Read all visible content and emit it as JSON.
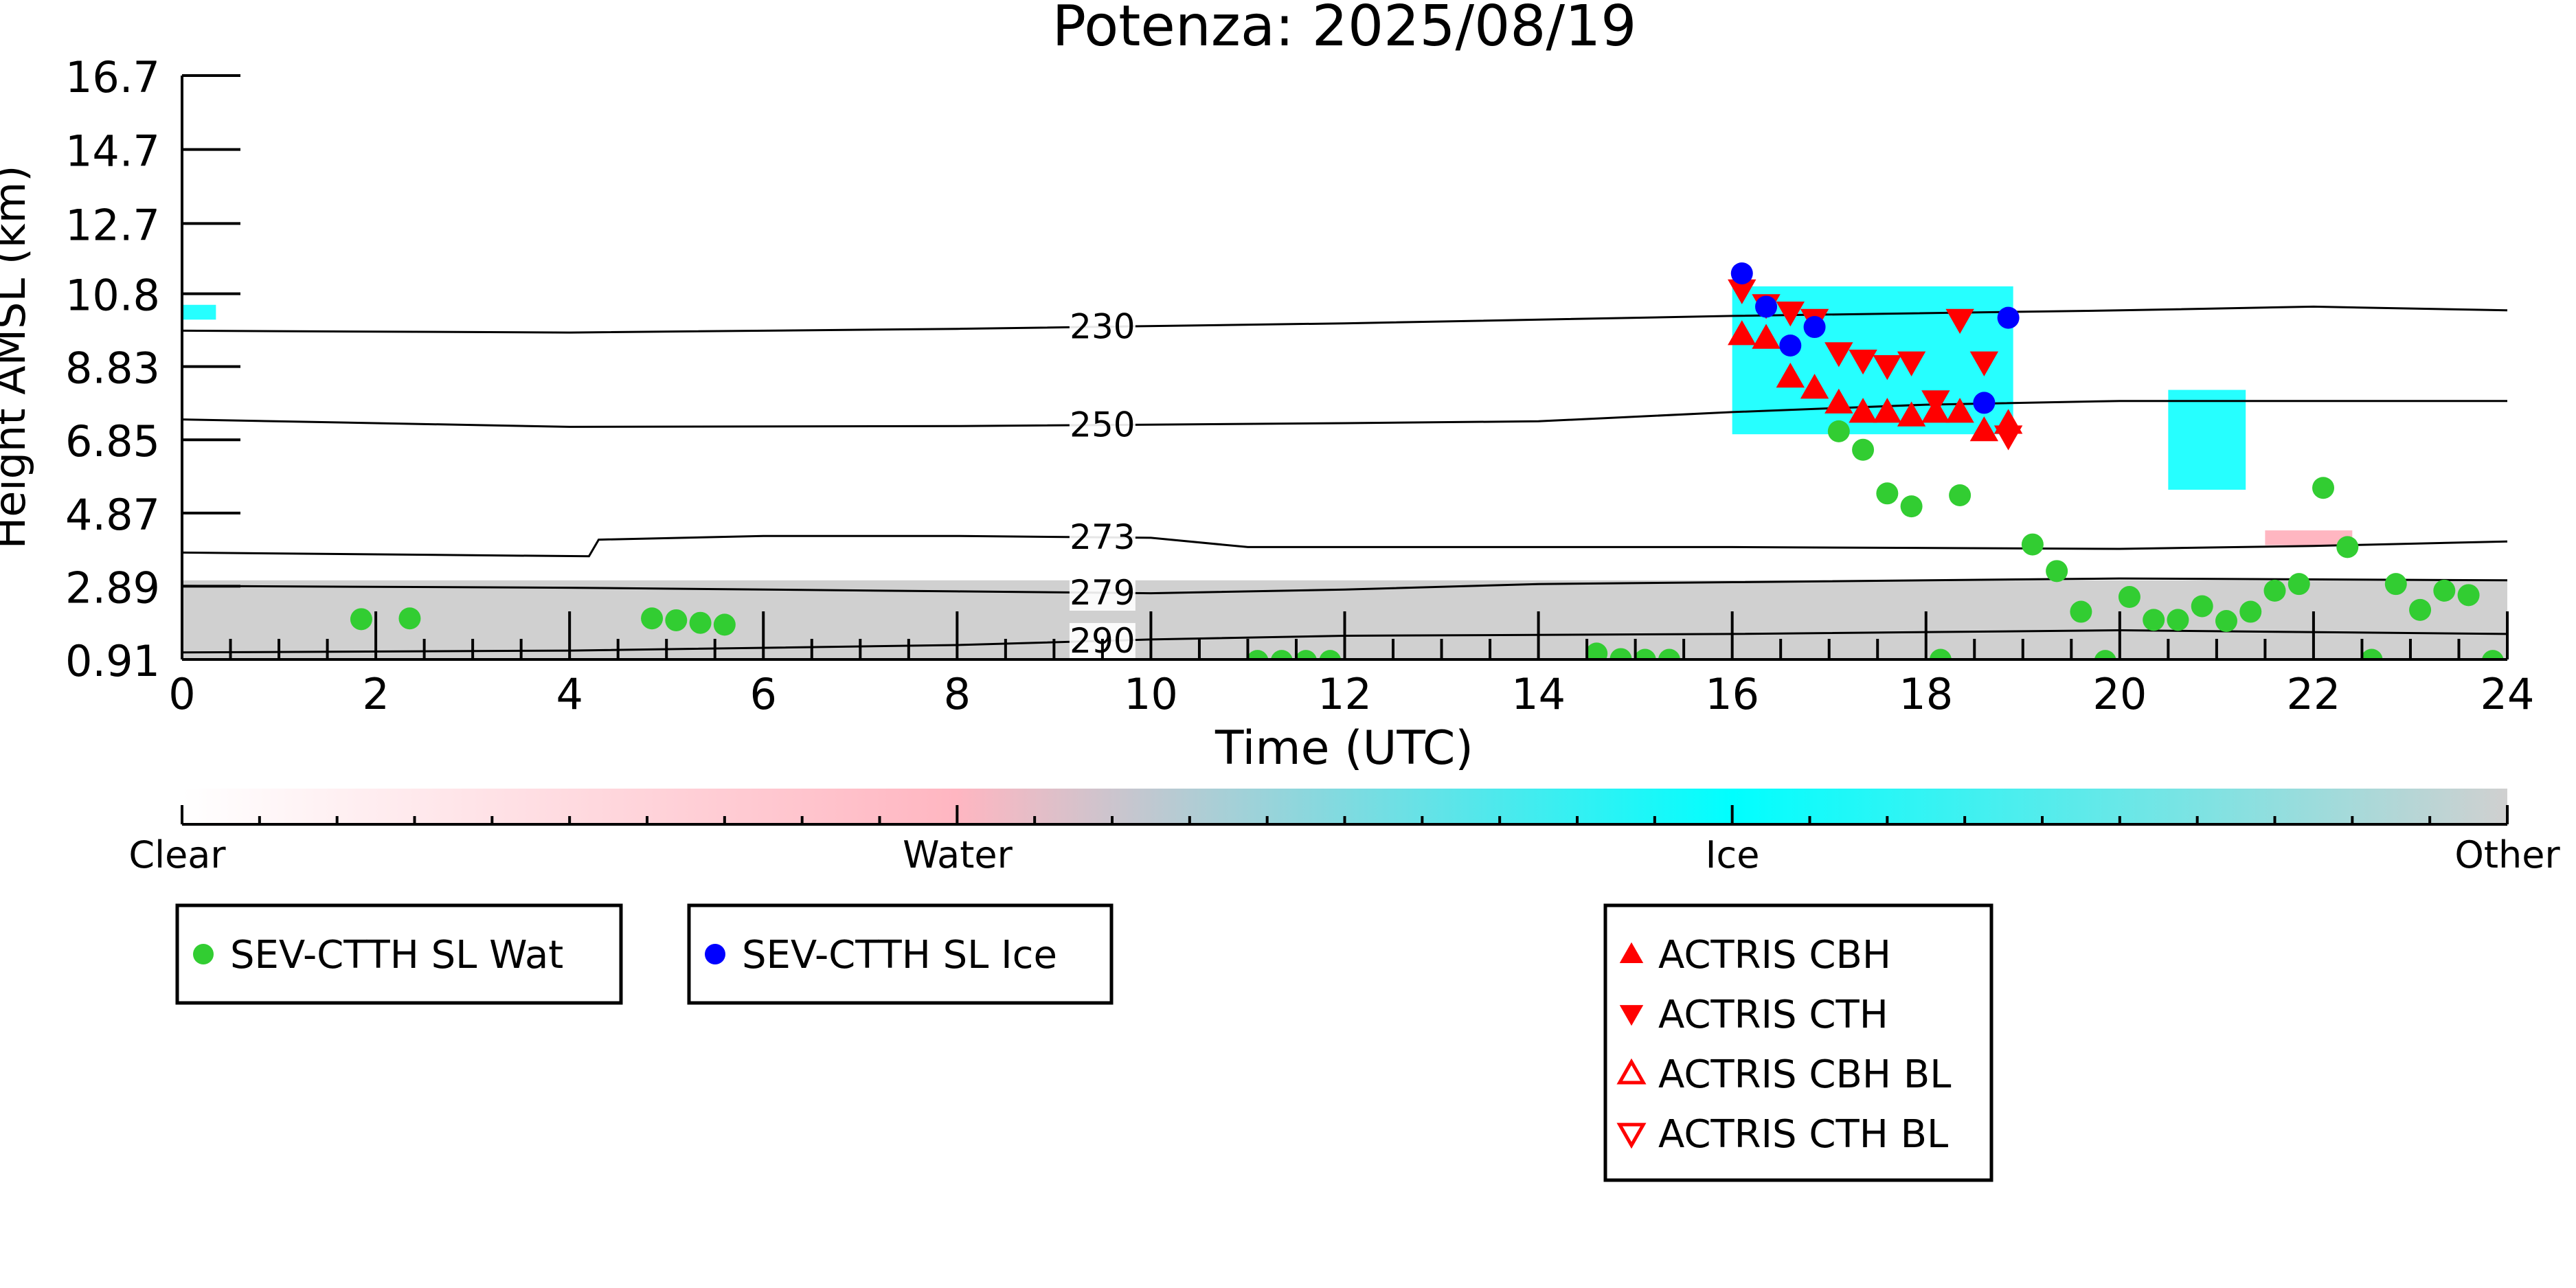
{
  "colors": {
    "clear": "#ffffff",
    "water": "#ffb6c1",
    "ice": "#00ffff",
    "other": "#d0d0d0",
    "wat_marker": "#32cd32",
    "ice_marker": "#0000ff",
    "actris": "#ff0000"
  },
  "chart_data": {
    "type": "scatter",
    "title": "Potenza: 2025/08/19",
    "xlabel": "Time (UTC)",
    "ylabel": "Height AMSL (km)",
    "xlim": [
      0,
      24
    ],
    "ylim": [
      0.91,
      16.7
    ],
    "x_ticks": [
      0,
      2,
      4,
      6,
      8,
      10,
      12,
      14,
      16,
      18,
      20,
      22,
      24
    ],
    "x_tick_labels": [
      "0",
      "2",
      "4",
      "6",
      "8",
      "10",
      "12",
      "14",
      "16",
      "18",
      "20",
      "22",
      "24"
    ],
    "y_ticks": [
      0.91,
      2.89,
      4.87,
      6.85,
      8.83,
      10.8,
      12.7,
      14.7,
      16.7
    ],
    "y_tick_labels": [
      "0.91",
      "2.89",
      "4.87",
      "6.85",
      "8.83",
      "10.8",
      "12.7",
      "14.7",
      "16.7"
    ],
    "colorbar": {
      "labels": [
        "Clear",
        "Water",
        "Ice",
        "Other"
      ],
      "positions": [
        0,
        0.333,
        0.667,
        1.0
      ]
    },
    "isotherms": [
      {
        "label": "230",
        "label_x": 9.5,
        "points": [
          [
            0,
            9.8
          ],
          [
            4,
            9.75
          ],
          [
            8,
            9.85
          ],
          [
            12,
            10.0
          ],
          [
            16,
            10.2
          ],
          [
            20,
            10.35
          ],
          [
            22,
            10.45
          ],
          [
            24,
            10.35
          ]
        ]
      },
      {
        "label": "250",
        "label_x": 9.5,
        "points": [
          [
            0,
            7.4
          ],
          [
            4,
            7.2
          ],
          [
            8,
            7.22
          ],
          [
            12,
            7.3
          ],
          [
            14,
            7.35
          ],
          [
            16,
            7.6
          ],
          [
            18,
            7.8
          ],
          [
            20,
            7.9
          ],
          [
            24,
            7.9
          ]
        ]
      },
      {
        "label": "273",
        "label_x": 9.5,
        "points": [
          [
            0,
            3.8
          ],
          [
            4.2,
            3.7
          ],
          [
            4.3,
            4.15
          ],
          [
            6,
            4.25
          ],
          [
            8,
            4.25
          ],
          [
            10,
            4.2
          ],
          [
            11,
            3.95
          ],
          [
            14,
            3.95
          ],
          [
            16,
            3.95
          ],
          [
            20,
            3.9
          ],
          [
            22,
            3.98
          ],
          [
            24,
            4.1
          ]
        ]
      },
      {
        "label": "279",
        "label_x": 9.5,
        "points": [
          [
            0,
            2.9
          ],
          [
            4,
            2.85
          ],
          [
            8,
            2.75
          ],
          [
            10,
            2.7
          ],
          [
            12,
            2.8
          ],
          [
            14,
            2.95
          ],
          [
            16,
            3.0
          ],
          [
            20,
            3.1
          ],
          [
            24,
            3.05
          ]
        ]
      },
      {
        "label": "290",
        "label_x": 9.5,
        "points": [
          [
            0,
            1.1
          ],
          [
            4,
            1.15
          ],
          [
            8,
            1.3
          ],
          [
            10,
            1.45
          ],
          [
            12,
            1.55
          ],
          [
            16,
            1.6
          ],
          [
            20,
            1.7
          ],
          [
            24,
            1.6
          ]
        ]
      }
    ],
    "regions": [
      {
        "class": "other",
        "x": [
          0,
          24
        ],
        "y": [
          0.91,
          3.05
        ]
      },
      {
        "class": "ice",
        "x": [
          16.0,
          18.9
        ],
        "y": [
          7.0,
          11.0
        ]
      },
      {
        "class": "ice",
        "x": [
          0,
          0.35
        ],
        "y": [
          10.1,
          10.5
        ]
      },
      {
        "class": "ice",
        "x": [
          20.5,
          21.3
        ],
        "y": [
          5.5,
          8.2
        ]
      },
      {
        "class": "water",
        "x": [
          21.5,
          22.4
        ],
        "y": [
          4.0,
          4.4
        ]
      }
    ],
    "series": [
      {
        "name": "SEV-CTTH SL Wat",
        "marker": "circle",
        "points": [
          [
            1.85,
            2.0
          ],
          [
            2.35,
            2.02
          ],
          [
            4.85,
            2.02
          ],
          [
            5.1,
            1.97
          ],
          [
            5.35,
            1.9
          ],
          [
            5.6,
            1.85
          ],
          [
            11.1,
            0.87
          ],
          [
            11.35,
            0.87
          ],
          [
            11.6,
            0.87
          ],
          [
            11.85,
            0.87
          ],
          [
            14.6,
            1.07
          ],
          [
            14.85,
            0.92
          ],
          [
            15.1,
            0.9
          ],
          [
            15.35,
            0.9
          ],
          [
            17.1,
            7.08
          ],
          [
            17.35,
            6.58
          ],
          [
            17.6,
            5.4
          ],
          [
            17.85,
            5.05
          ],
          [
            18.35,
            5.35
          ],
          [
            18.15,
            0.9
          ],
          [
            19.1,
            4.02
          ],
          [
            19.35,
            3.3
          ],
          [
            19.6,
            2.2
          ],
          [
            19.85,
            0.87
          ],
          [
            20.1,
            2.6
          ],
          [
            20.35,
            1.98
          ],
          [
            20.6,
            1.98
          ],
          [
            20.85,
            2.35
          ],
          [
            21.1,
            1.95
          ],
          [
            21.35,
            2.2
          ],
          [
            21.6,
            2.77
          ],
          [
            21.85,
            2.95
          ],
          [
            22.1,
            5.55
          ],
          [
            22.35,
            3.95
          ],
          [
            22.6,
            0.9
          ],
          [
            22.85,
            2.95
          ],
          [
            23.1,
            2.25
          ],
          [
            23.35,
            2.77
          ],
          [
            23.6,
            2.65
          ],
          [
            23.85,
            0.87
          ]
        ]
      },
      {
        "name": "SEV-CTTH SL Ice",
        "marker": "circle",
        "points": [
          [
            16.1,
            11.35
          ],
          [
            16.35,
            10.45
          ],
          [
            16.6,
            9.4
          ],
          [
            16.85,
            9.9
          ],
          [
            18.6,
            7.85
          ],
          [
            18.85,
            10.15
          ]
        ]
      },
      {
        "name": "ACTRIS CBH",
        "marker": "triangle-up",
        "points": [
          [
            16.1,
            9.7
          ],
          [
            16.35,
            9.6
          ],
          [
            16.6,
            8.55
          ],
          [
            16.85,
            8.25
          ],
          [
            17.1,
            7.85
          ],
          [
            17.35,
            7.6
          ],
          [
            17.6,
            7.6
          ],
          [
            17.85,
            7.5
          ],
          [
            18.1,
            7.6
          ],
          [
            18.35,
            7.6
          ],
          [
            18.6,
            7.1
          ],
          [
            18.85,
            7.3
          ]
        ]
      },
      {
        "name": "ACTRIS CTH",
        "marker": "triangle-down",
        "points": [
          [
            16.1,
            10.9
          ],
          [
            16.35,
            10.5
          ],
          [
            16.6,
            10.3
          ],
          [
            16.85,
            10.1
          ],
          [
            17.1,
            9.2
          ],
          [
            17.35,
            9.0
          ],
          [
            17.6,
            8.85
          ],
          [
            17.85,
            8.95
          ],
          [
            18.1,
            7.9
          ],
          [
            18.35,
            10.1
          ],
          [
            18.6,
            8.95
          ],
          [
            18.85,
            6.95
          ]
        ]
      },
      {
        "name": "ACTRIS CBH BL",
        "marker": "triangle-up-open",
        "points": []
      },
      {
        "name": "ACTRIS CTH BL",
        "marker": "triangle-down-open",
        "points": []
      }
    ],
    "legends": [
      {
        "entries": [
          {
            "label": "SEV-CTTH SL Wat",
            "marker": "circle",
            "color": "#32cd32"
          }
        ]
      },
      {
        "entries": [
          {
            "label": "SEV-CTTH SL Ice",
            "marker": "circle",
            "color": "#0000ff"
          }
        ]
      },
      {
        "entries": [
          {
            "label": "ACTRIS CBH",
            "marker": "triangle-up",
            "color": "#ff0000"
          },
          {
            "label": "ACTRIS CTH",
            "marker": "triangle-down",
            "color": "#ff0000"
          },
          {
            "label": "ACTRIS CBH BL",
            "marker": "triangle-up-open",
            "color": "#ff0000"
          },
          {
            "label": "ACTRIS CTH BL",
            "marker": "triangle-down-open",
            "color": "#ff0000"
          }
        ]
      }
    ]
  }
}
